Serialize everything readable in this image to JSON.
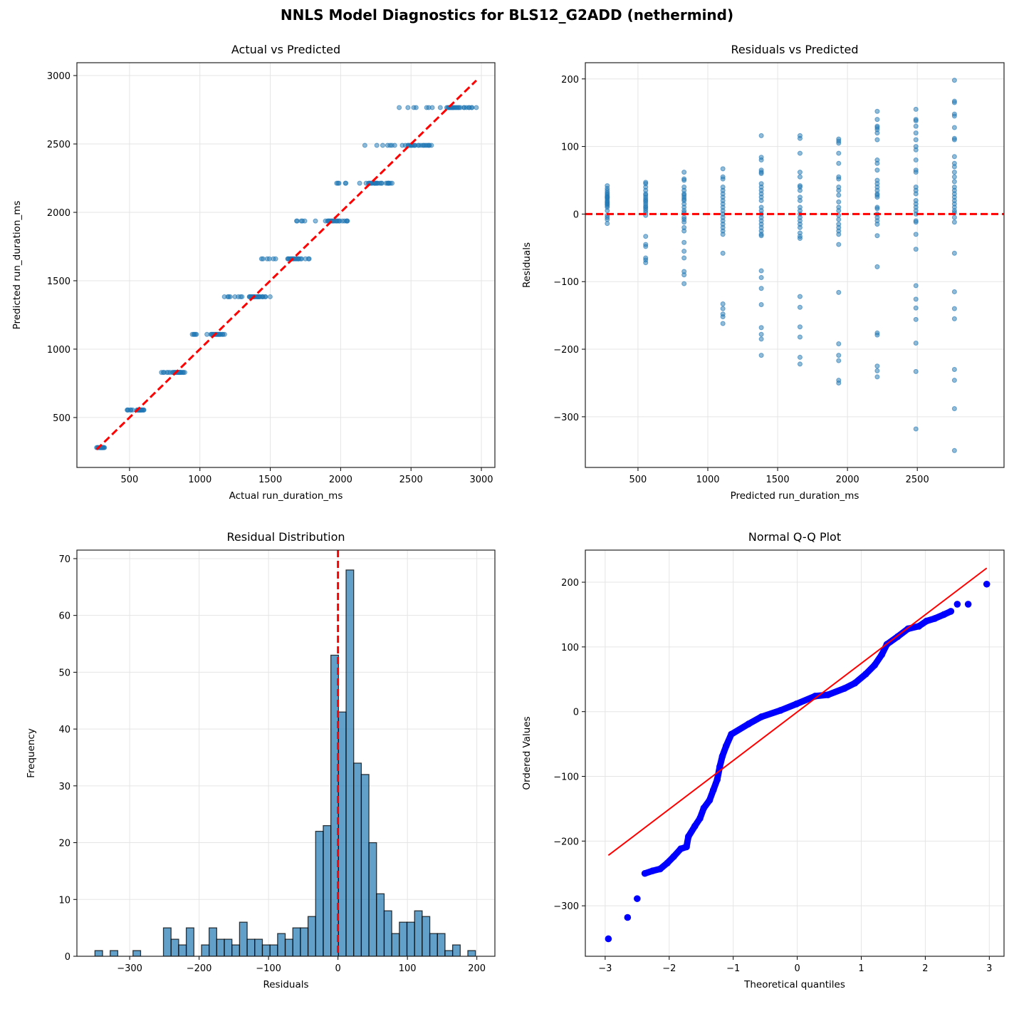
{
  "title": "NNLS Model Diagnostics for BLS12_G2ADD (nethermind)",
  "colors": {
    "points": "#1f77b4",
    "reference": "#ff0000",
    "qq_points": "#0000ff",
    "grid": "#e5e5e5"
  },
  "chart_data": [
    {
      "id": "actual-vs-predicted",
      "type": "scatter",
      "title": "Actual vs Predicted",
      "xlabel": "Actual run_duration_ms",
      "ylabel": "Predicted run_duration_ms",
      "xlim": [
        126,
        3096
      ],
      "ylim": [
        135,
        3094
      ],
      "xticks": [
        500,
        1000,
        1500,
        2000,
        2500,
        3000
      ],
      "yticks": [
        500,
        1000,
        1500,
        2000,
        2500,
        3000
      ],
      "grid": true,
      "note_points": "actual = predicted + residual (same observations as the residual plot)",
      "reference_line": "y = x, red dashed"
    },
    {
      "id": "residuals-vs-predicted",
      "type": "scatter",
      "title": "Residuals vs Predicted",
      "xlabel": "Predicted run_duration_ms",
      "ylabel": "Residuals",
      "xlim": [
        123,
        3121
      ],
      "ylim": [
        -375,
        224
      ],
      "xticks": [
        500,
        1000,
        1500,
        2000,
        2500
      ],
      "yticks": [
        -300,
        -200,
        -100,
        0,
        100,
        200
      ],
      "grid": true,
      "reference_line": "y = 0, red dashed",
      "groups": [
        {
          "predicted": 280,
          "residuals": [
            42,
            38,
            35,
            32,
            30,
            28,
            26,
            25,
            24,
            22,
            20,
            18,
            17,
            15,
            14,
            12,
            10,
            5,
            -2,
            -5,
            -8,
            -14
          ]
        },
        {
          "predicted": 555,
          "residuals": [
            47,
            45,
            40,
            35,
            30,
            28,
            25,
            22,
            20,
            18,
            15,
            12,
            10,
            8,
            5,
            2,
            -2,
            -33,
            -45,
            -48,
            -65,
            -68,
            -72
          ]
        },
        {
          "predicted": 830,
          "residuals": [
            62,
            52,
            50,
            40,
            35,
            30,
            28,
            25,
            22,
            20,
            15,
            10,
            5,
            2,
            -5,
            -8,
            -12,
            -20,
            -25,
            -42,
            -55,
            -65,
            -85,
            -90,
            -103
          ]
        },
        {
          "predicted": 1108,
          "residuals": [
            67,
            55,
            52,
            40,
            35,
            30,
            25,
            20,
            15,
            10,
            5,
            0,
            -5,
            -10,
            -15,
            -20,
            -25,
            -30,
            -58,
            -133,
            -140,
            -148,
            -152,
            -162
          ]
        },
        {
          "predicted": 1383,
          "residuals": [
            116,
            84,
            80,
            65,
            62,
            60,
            45,
            40,
            35,
            30,
            25,
            20,
            10,
            5,
            0,
            -5,
            -10,
            -15,
            -20,
            -25,
            -30,
            -32,
            -84,
            -94,
            -110,
            -134,
            -168,
            -178,
            -185,
            -209
          ]
        },
        {
          "predicted": 1660,
          "residuals": [
            116,
            112,
            90,
            62,
            55,
            42,
            40,
            35,
            25,
            20,
            10,
            5,
            0,
            -5,
            -10,
            -15,
            -20,
            -28,
            -33,
            -36,
            -122,
            -138,
            -167,
            -182,
            -212,
            -222
          ]
        },
        {
          "predicted": 1937,
          "residuals": [
            111,
            108,
            105,
            90,
            75,
            55,
            52,
            40,
            35,
            28,
            18,
            10,
            5,
            -2,
            -8,
            -15,
            -20,
            -25,
            -30,
            -45,
            -116,
            -192,
            -209,
            -217,
            -246,
            -250
          ]
        },
        {
          "predicted": 2213,
          "residuals": [
            152,
            140,
            130,
            128,
            125,
            120,
            110,
            80,
            75,
            65,
            50,
            45,
            40,
            35,
            30,
            28,
            25,
            10,
            8,
            0,
            -5,
            -10,
            -15,
            -32,
            -78,
            -176,
            -179,
            -225,
            -232,
            -241
          ]
        },
        {
          "predicted": 2490,
          "residuals": [
            155,
            140,
            138,
            130,
            120,
            110,
            100,
            95,
            80,
            65,
            62,
            40,
            35,
            30,
            20,
            15,
            10,
            5,
            0,
            -10,
            -12,
            -30,
            -52,
            -106,
            -126,
            -139,
            -156,
            -191,
            -233,
            -318
          ]
        },
        {
          "predicted": 2766,
          "residuals": [
            198,
            167,
            165,
            148,
            145,
            128,
            112,
            110,
            85,
            75,
            70,
            62,
            55,
            48,
            40,
            35,
            30,
            25,
            20,
            15,
            10,
            5,
            2,
            -5,
            -12,
            -58,
            -115,
            -140,
            -155,
            -230,
            -246,
            -288,
            -350
          ]
        }
      ]
    },
    {
      "id": "residual-distribution",
      "type": "bar",
      "title": "Residual Distribution",
      "xlabel": "Residuals",
      "ylabel": "Frequency",
      "xlim": [
        -376,
        226
      ],
      "ylim": [
        0,
        71.5
      ],
      "xticks": [
        -300,
        -200,
        -100,
        0,
        100,
        200
      ],
      "yticks": [
        0,
        10,
        20,
        30,
        40,
        50,
        60,
        70
      ],
      "grid": true,
      "bin_start": -350,
      "bin_end": 198,
      "counts": [
        1,
        0,
        1,
        0,
        0,
        1,
        0,
        0,
        0,
        5,
        3,
        2,
        5,
        0,
        2,
        5,
        3,
        3,
        2,
        6,
        3,
        3,
        2,
        2,
        4,
        3,
        5,
        5,
        7,
        22,
        23,
        53,
        43,
        68,
        34,
        32,
        20,
        11,
        8,
        4,
        6,
        6,
        8,
        7,
        4,
        4,
        1,
        2,
        0,
        1
      ],
      "reference_line": "x = 0, red dashed"
    },
    {
      "id": "normal-qq",
      "type": "scatter",
      "title": "Normal Q-Q Plot",
      "xlabel": "Theoretical quantiles",
      "ylabel": "Ordered Values",
      "xlim": [
        -3.31,
        3.23
      ],
      "ylim": [
        -378,
        249.6
      ],
      "xticks": [
        -3,
        -2,
        -1,
        0,
        1,
        2,
        3
      ],
      "yticks": [
        -300,
        -200,
        -100,
        0,
        100,
        200
      ],
      "grid": true,
      "fit_line": {
        "slope": 75.1,
        "intercept": -0.5,
        "x_range": [
          -2.95,
          2.96
        ]
      },
      "points": [
        [
          -2.95,
          -351
        ],
        [
          -2.65,
          -318
        ],
        [
          -2.5,
          -289
        ],
        [
          -2.38,
          -250
        ],
        [
          -2.26,
          -246
        ],
        [
          -2.14,
          -243
        ],
        [
          -2.03,
          -234
        ],
        [
          -1.93,
          -224
        ],
        [
          -1.82,
          -212
        ],
        [
          -1.73,
          -209
        ],
        [
          -1.7,
          -193
        ],
        [
          -1.6,
          -177
        ],
        [
          -1.52,
          -165
        ],
        [
          -1.46,
          -149
        ],
        [
          -1.37,
          -137
        ],
        [
          -1.31,
          -121
        ],
        [
          -1.25,
          -105
        ],
        [
          -1.21,
          -85
        ],
        [
          -1.17,
          -69
        ],
        [
          -1.11,
          -53
        ],
        [
          -1.03,
          -35
        ],
        [
          -0.76,
          -19
        ],
        [
          -0.56,
          -8
        ],
        [
          -0.26,
          2
        ],
        [
          -0.01,
          12
        ],
        [
          0.28,
          24
        ],
        [
          0.48,
          26
        ],
        [
          0.74,
          36
        ],
        [
          0.9,
          44
        ],
        [
          1.07,
          58
        ],
        [
          1.21,
          72
        ],
        [
          1.32,
          88
        ],
        [
          1.4,
          104
        ],
        [
          1.57,
          116
        ],
        [
          1.73,
          128
        ],
        [
          1.9,
          132
        ],
        [
          2.02,
          140
        ],
        [
          2.15,
          144
        ],
        [
          2.29,
          150
        ],
        [
          2.4,
          155
        ],
        [
          2.5,
          166
        ],
        [
          2.67,
          166
        ],
        [
          2.96,
          197
        ]
      ]
    }
  ]
}
